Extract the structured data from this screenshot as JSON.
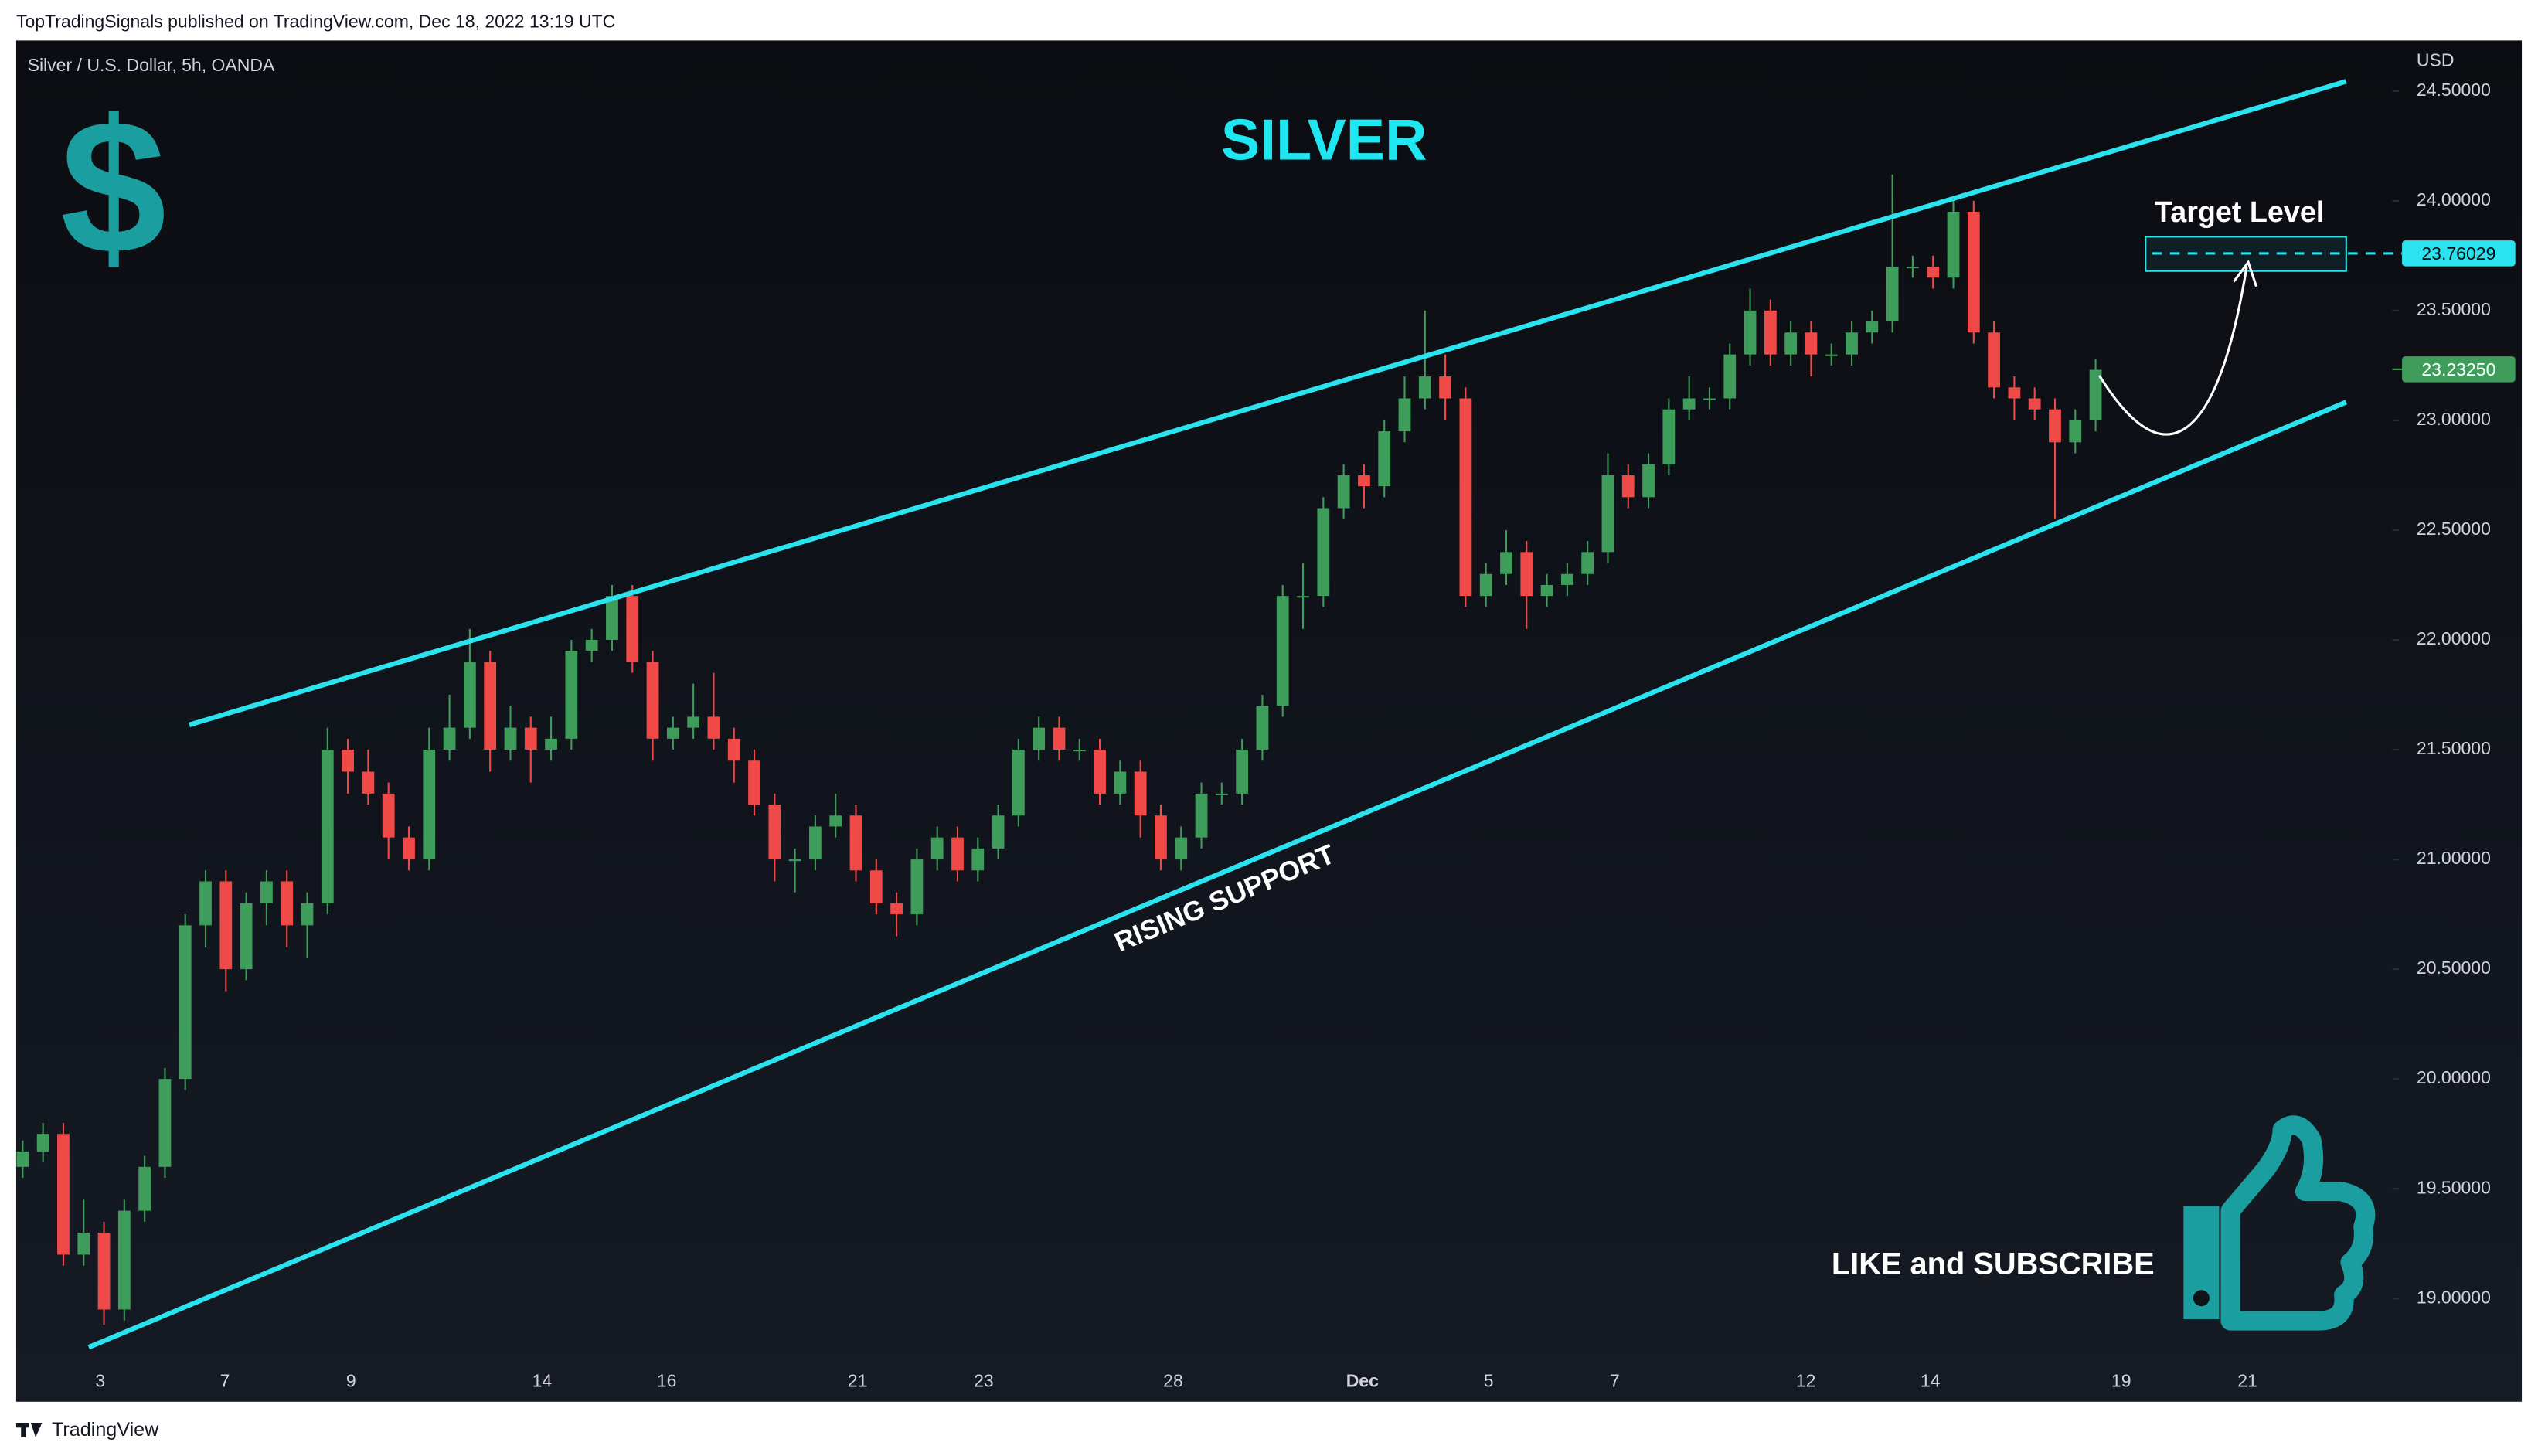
{
  "header": "TopTradingSignals published on TradingView.com, Dec 18, 2022 13:19 UTC",
  "footer": "TradingView",
  "chart_data": {
    "type": "candlestick",
    "title": "SILVER",
    "symbol": "Silver / U.S. Dollar, 5h, OANDA",
    "currency": "USD",
    "logo": "$",
    "up_color": "#3f9d5b",
    "down_color": "#ef4a48",
    "line_color": "#2be3ef",
    "grid": false,
    "xlim": [
      -0.32,
      116.6
    ],
    "ylim": [
      18.53,
      24.73
    ],
    "xticks": [
      {
        "value": 3.82,
        "label": "3"
      },
      {
        "value": 9.95,
        "label": "7"
      },
      {
        "value": 16.16,
        "label": "9"
      },
      {
        "value": 25.56,
        "label": "14"
      },
      {
        "value": 31.69,
        "label": "16"
      },
      {
        "value": 41.08,
        "label": "21"
      },
      {
        "value": 47.29,
        "label": "23"
      },
      {
        "value": 56.61,
        "label": "28"
      },
      {
        "value": 65.92,
        "label": "Dec"
      },
      {
        "value": 72.13,
        "label": "5"
      },
      {
        "value": 78.34,
        "label": "7"
      },
      {
        "value": 87.74,
        "label": "12"
      },
      {
        "value": 93.87,
        "label": "14"
      },
      {
        "value": 103.26,
        "label": "19"
      },
      {
        "value": 109.47,
        "label": "21"
      }
    ],
    "yticks": [
      {
        "value": 19,
        "label": "19.00000"
      },
      {
        "value": 19.5,
        "label": "19.50000"
      },
      {
        "value": 20,
        "label": "20.00000"
      },
      {
        "value": 20.5,
        "label": "20.50000"
      },
      {
        "value": 21,
        "label": "21.00000"
      },
      {
        "value": 21.5,
        "label": "21.50000"
      },
      {
        "value": 22,
        "label": "22.00000"
      },
      {
        "value": 22.5,
        "label": "22.50000"
      },
      {
        "value": 23,
        "label": "23.00000"
      },
      {
        "value": 23.5,
        "label": "23.50000"
      },
      {
        "value": 24,
        "label": "24.00000"
      },
      {
        "value": 24.5,
        "label": "24.50000"
      }
    ],
    "open": [
      19.6,
      19.67,
      19.75,
      19.2,
      19.3,
      18.95,
      19.4,
      19.6,
      20.0,
      20.7,
      20.9,
      20.5,
      20.8,
      20.9,
      20.7,
      20.8,
      21.5,
      21.4,
      21.3,
      21.1,
      21.0,
      21.5,
      21.6,
      21.9,
      21.5,
      21.6,
      21.5,
      21.55,
      21.95,
      22.0,
      22.2,
      21.9,
      21.55,
      21.6,
      21.65,
      21.55,
      21.45,
      21.25,
      21.0,
      21.0,
      21.15,
      21.2,
      20.95,
      20.8,
      20.75,
      21.0,
      21.1,
      20.95,
      21.05,
      21.2,
      21.5,
      21.6,
      21.5,
      21.5,
      21.3,
      21.4,
      21.2,
      21.0,
      21.1,
      21.3,
      21.3,
      21.5,
      21.7,
      22.2,
      22.2,
      22.6,
      22.75,
      22.7,
      22.95,
      23.1,
      23.2,
      23.1,
      22.2,
      22.3,
      22.4,
      22.2,
      22.25,
      22.3,
      22.4,
      22.75,
      22.65,
      22.8,
      23.05,
      23.1,
      23.1,
      23.3,
      23.5,
      23.3,
      23.4,
      23.3,
      23.3,
      23.4,
      23.45,
      23.7,
      23.7,
      23.65,
      23.95,
      23.4,
      23.15,
      23.1,
      23.05,
      22.9,
      23.0
    ],
    "high": [
      19.72,
      19.8,
      19.8,
      19.45,
      19.35,
      19.45,
      19.65,
      20.05,
      20.75,
      20.95,
      20.95,
      20.85,
      20.95,
      20.95,
      20.85,
      21.6,
      21.55,
      21.5,
      21.35,
      21.15,
      21.6,
      21.75,
      22.05,
      21.95,
      21.7,
      21.65,
      21.65,
      22.0,
      22.05,
      22.25,
      22.25,
      21.95,
      21.65,
      21.8,
      21.85,
      21.6,
      21.5,
      21.3,
      21.05,
      21.2,
      21.3,
      21.25,
      21.0,
      20.85,
      21.05,
      21.15,
      21.15,
      21.1,
      21.25,
      21.55,
      21.65,
      21.65,
      21.55,
      21.55,
      21.45,
      21.45,
      21.25,
      21.15,
      21.35,
      21.35,
      21.55,
      21.75,
      22.25,
      22.35,
      22.65,
      22.8,
      22.8,
      23.0,
      23.2,
      23.5,
      23.3,
      23.15,
      22.35,
      22.5,
      22.45,
      22.3,
      22.35,
      22.45,
      22.85,
      22.8,
      22.85,
      23.1,
      23.2,
      23.15,
      23.35,
      23.6,
      23.55,
      23.45,
      23.45,
      23.35,
      23.45,
      23.5,
      24.12,
      23.75,
      23.75,
      24.0,
      24.0,
      23.45,
      23.2,
      23.15,
      23.1,
      23.05,
      23.28
    ],
    "low": [
      19.55,
      19.62,
      19.15,
      19.15,
      18.88,
      18.9,
      19.35,
      19.55,
      19.95,
      20.6,
      20.4,
      20.45,
      20.7,
      20.6,
      20.55,
      20.75,
      21.3,
      21.25,
      21.0,
      20.95,
      20.95,
      21.45,
      21.55,
      21.4,
      21.45,
      21.35,
      21.45,
      21.5,
      21.9,
      21.95,
      21.85,
      21.45,
      21.5,
      21.55,
      21.5,
      21.35,
      21.2,
      20.9,
      20.85,
      20.95,
      21.1,
      20.9,
      20.75,
      20.65,
      20.7,
      20.95,
      20.9,
      20.9,
      21.0,
      21.15,
      21.45,
      21.45,
      21.45,
      21.25,
      21.25,
      21.1,
      20.95,
      20.95,
      21.05,
      21.25,
      21.25,
      21.45,
      21.65,
      22.05,
      22.15,
      22.55,
      22.6,
      22.65,
      22.9,
      23.05,
      23.0,
      22.15,
      22.15,
      22.25,
      22.05,
      22.15,
      22.2,
      22.25,
      22.35,
      22.6,
      22.6,
      22.75,
      23.0,
      23.05,
      23.05,
      23.25,
      23.25,
      23.25,
      23.2,
      23.25,
      23.25,
      23.35,
      23.4,
      23.65,
      23.6,
      23.6,
      23.35,
      23.1,
      23.0,
      23.0,
      22.55,
      22.85,
      22.95
    ],
    "close": [
      19.67,
      19.75,
      19.2,
      19.3,
      18.95,
      19.4,
      19.6,
      20.0,
      20.7,
      20.9,
      20.5,
      20.8,
      20.9,
      20.7,
      20.8,
      21.5,
      21.4,
      21.3,
      21.1,
      21.0,
      21.5,
      21.6,
      21.9,
      21.5,
      21.6,
      21.5,
      21.55,
      21.95,
      22.0,
      22.2,
      21.9,
      21.55,
      21.6,
      21.65,
      21.55,
      21.45,
      21.25,
      21.0,
      21.0,
      21.15,
      21.2,
      20.95,
      20.8,
      20.75,
      21.0,
      21.1,
      20.95,
      21.05,
      21.2,
      21.5,
      21.6,
      21.5,
      21.5,
      21.3,
      21.4,
      21.2,
      21.0,
      21.1,
      21.3,
      21.3,
      21.5,
      21.7,
      22.2,
      22.2,
      22.6,
      22.75,
      22.7,
      22.95,
      23.1,
      23.2,
      23.1,
      22.2,
      22.3,
      22.4,
      22.2,
      22.25,
      22.3,
      22.4,
      22.75,
      22.65,
      22.8,
      23.05,
      23.1,
      23.1,
      23.3,
      23.5,
      23.3,
      23.4,
      23.3,
      23.3,
      23.4,
      23.45,
      23.7,
      23.7,
      23.65,
      23.95,
      23.4,
      23.15,
      23.1,
      23.05,
      22.9,
      23.0,
      23.23
    ],
    "last_price": {
      "value": 23.2325,
      "label": "23.23250"
    },
    "target_price": 23.76029,
    "target_label": "Target Level",
    "target_zone": {
      "x": [
        104.46,
        114.33
      ],
      "y": [
        23.68,
        23.836
      ]
    },
    "upper_line": {
      "x": [
        8.2,
        114.33
      ],
      "y": [
        21.613,
        24.544
      ]
    },
    "lower_line": {
      "x": [
        3.25,
        114.33
      ],
      "y": [
        18.778,
        23.083
      ]
    },
    "support_label": "RISING SUPPORT",
    "cta": "LIKE and SUBSCRIBE"
  }
}
